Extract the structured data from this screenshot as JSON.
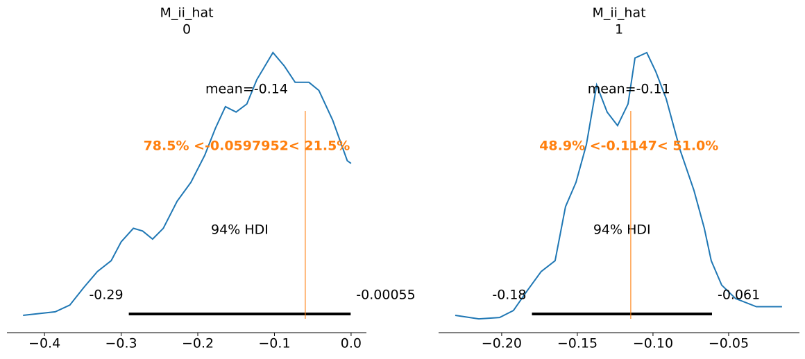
{
  "chart_data": [
    {
      "type": "density",
      "title": "M_ii_hat",
      "subtitle": "0",
      "color": "#1f77b4",
      "x": [
        -0.428,
        -0.386,
        -0.367,
        -0.349,
        -0.331,
        -0.313,
        -0.3,
        -0.284,
        -0.272,
        -0.259,
        -0.245,
        -0.227,
        -0.209,
        -0.191,
        -0.177,
        -0.164,
        -0.15,
        -0.136,
        -0.123,
        -0.102,
        -0.087,
        -0.073,
        -0.055,
        -0.042,
        -0.024,
        -0.005,
        0.0
      ],
      "values": [
        0.018,
        0.031,
        0.056,
        0.12,
        0.18,
        0.22,
        0.29,
        0.34,
        0.33,
        0.3,
        0.34,
        0.44,
        0.51,
        0.61,
        0.71,
        0.79,
        0.77,
        0.8,
        0.89,
        0.99,
        0.94,
        0.88,
        0.88,
        0.85,
        0.74,
        0.59,
        0.58
      ],
      "xlim": [
        -0.449,
        0.02
      ],
      "ylim": [
        0,
        1
      ],
      "xticks": [
        {
          "value": -0.4,
          "label": "−0.4"
        },
        {
          "value": -0.3,
          "label": "−0.3"
        },
        {
          "value": -0.2,
          "label": "−0.2"
        },
        {
          "value": -0.1,
          "label": "−0.1"
        },
        {
          "value": 0.0,
          "label": "0.0"
        }
      ],
      "mean_label": "mean=-0.14",
      "ref_value": -0.0597952,
      "ref_label": "78.5% <-0.0597952< 21.5%",
      "ref_color": "#ff7f0e",
      "hdi_label": "94% HDI",
      "hdi": [
        -0.29,
        -0.00055
      ]
    },
    {
      "type": "density",
      "title": "M_ii_hat",
      "subtitle": "1",
      "color": "#1f77b4",
      "x": [
        -0.2307,
        -0.2151,
        -0.2014,
        -0.1922,
        -0.183,
        -0.1739,
        -0.1647,
        -0.1578,
        -0.1509,
        -0.144,
        -0.1372,
        -0.1303,
        -0.1234,
        -0.1165,
        -0.1119,
        -0.1041,
        -0.0982,
        -0.0913,
        -0.0821,
        -0.0729,
        -0.0661,
        -0.0615,
        -0.0546,
        -0.0454,
        -0.0317,
        -0.0147
      ],
      "values": [
        0.018,
        0.005,
        0.01,
        0.036,
        0.11,
        0.18,
        0.22,
        0.42,
        0.51,
        0.65,
        0.87,
        0.77,
        0.72,
        0.8,
        0.97,
        0.99,
        0.92,
        0.82,
        0.63,
        0.48,
        0.34,
        0.22,
        0.13,
        0.08,
        0.05,
        0.05
      ],
      "xlim": [
        -0.2417,
        -0.0032
      ],
      "ylim": [
        0,
        1
      ],
      "xticks": [
        {
          "value": -0.2,
          "label": "−0.20"
        },
        {
          "value": -0.15,
          "label": "−0.15"
        },
        {
          "value": -0.1,
          "label": "−0.10"
        },
        {
          "value": -0.05,
          "label": "−0.05"
        }
      ],
      "mean_label": "mean=-0.11",
      "ref_value": -0.1147,
      "ref_label": "48.9% <-0.1147< 51.0%",
      "ref_color": "#ff7f0e",
      "hdi_label": "94% HDI",
      "hdi": [
        -0.18,
        -0.061
      ]
    }
  ]
}
